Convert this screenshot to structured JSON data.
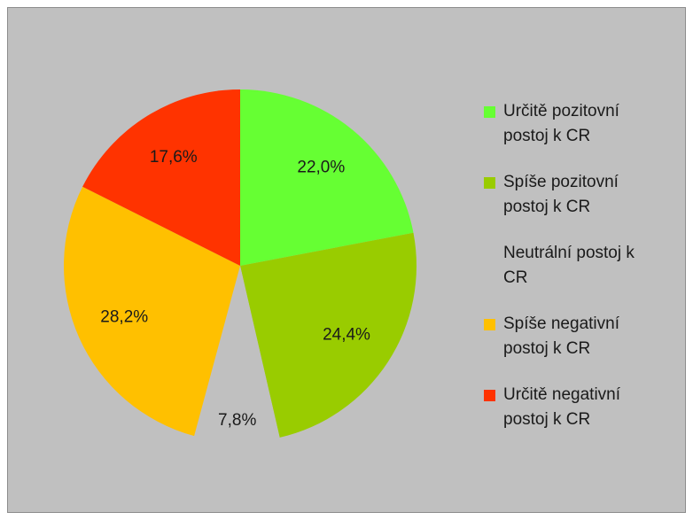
{
  "chart_data": {
    "type": "pie",
    "categories": [
      "Určitě pozitovní postoj k CR",
      "Spíše pozitovní postoj k CR",
      "Neutrální postoj k CR",
      "Spíše negativní postoj k CR",
      "Určitě negativní postoj k CR"
    ],
    "values": [
      22.0,
      24.4,
      7.8,
      28.2,
      17.6
    ],
    "value_labels": [
      "22,0%",
      "24,4%",
      "7,8%",
      "28,2%",
      "17,6%"
    ],
    "colors": [
      "#66ff33",
      "#99cc00",
      "#c0c0c0",
      "#ffc000",
      "#ff3300"
    ],
    "legend": "right"
  }
}
